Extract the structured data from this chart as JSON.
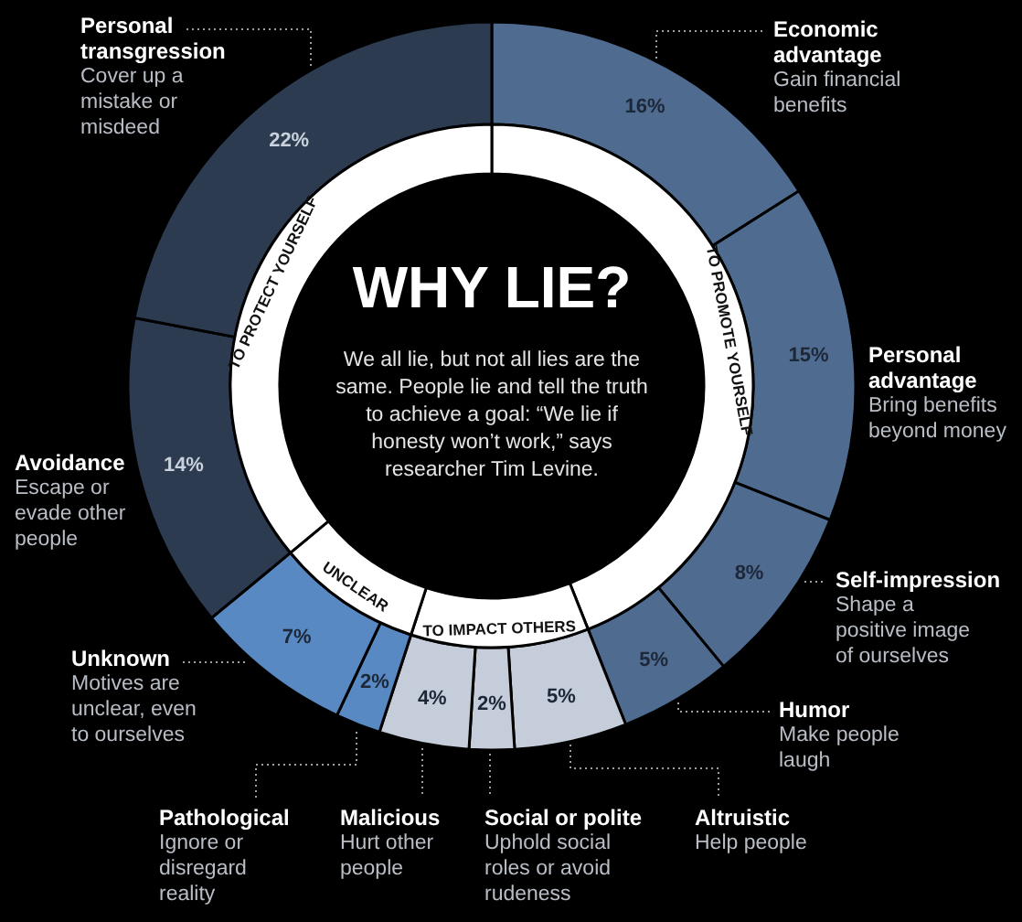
{
  "chart_data": [
    {
      "type": "donut",
      "title": "WHY LIE?",
      "subtitle": "We all lie, but not all lies are the same. People lie and tell the truth to achieve a goal: “We lie if honesty won’t work,” says researcher Tim Levine.",
      "categories": [
        "Economic advantage\nGain financial benefits",
        "Personal advantage\nBring benefits beyond money",
        "Self-impression\nShape a positive image of ourselves",
        "Humor\nMake people laugh",
        "Altruistic\nHelp people",
        "Social or polite\nUphold social roles or avoid rudeness",
        "Malicious\nHurt other people",
        "Pathological\nIgnore or disregard reality",
        "Unknown\nMotives are unclear, even to ourselves",
        "Avoidance\nEscape or evade other people",
        "Personal transgression\nCover up a mistake or misdeed"
      ],
      "values": [
        16,
        15,
        8,
        5,
        5,
        2,
        4,
        2,
        7,
        14,
        22
      ],
      "value_labels": [
        "16%",
        "15%",
        "8%",
        "5%",
        "5%",
        "2%",
        "4%",
        "2%",
        "7%",
        "14%",
        "22%"
      ],
      "colors": [
        "#4f6b8f",
        "#4f6b8f",
        "#4f6b8f",
        "#4f6b8f",
        "#c4cdd9",
        "#c4cdd9",
        "#c4cdd9",
        "#5889c2",
        "#5889c2",
        "#2c3b50",
        "#2c3b50"
      ]
    },
    {
      "type": "donut",
      "categories": [
        "TO PROMOTE YOURSELF",
        "TO IMPACT OTHERS",
        "UNCLEAR",
        "TO PROTECT YOURSELF"
      ],
      "values": [
        44,
        11,
        9,
        36
      ],
      "colors": [
        "#ffffff",
        "#ffffff",
        "#ffffff",
        "#ffffff"
      ]
    }
  ]
}
